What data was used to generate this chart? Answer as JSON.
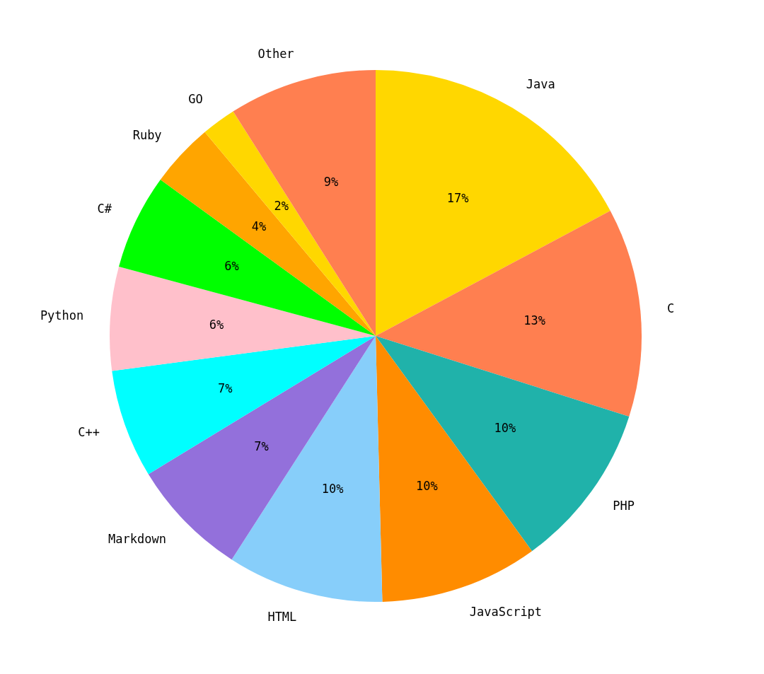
{
  "chart_data": {
    "type": "pie",
    "categories": [
      "Java",
      "C",
      "PHP",
      "JavaScript",
      "HTML",
      "Markdown",
      "C++",
      "Python",
      "C#",
      "Ruby",
      "GO",
      "Other"
    ],
    "values": [
      17.2,
      12.7,
      10.1,
      9.6,
      9.5,
      7.2,
      6.6,
      6.3,
      5.8,
      3.9,
      2.1,
      9.0
    ],
    "value_labels": [
      "17%",
      "13%",
      "10%",
      "10%",
      "10%",
      "7%",
      "7%",
      "6%",
      "6%",
      "4%",
      "2%",
      "9%"
    ],
    "colors": [
      "#ffd700",
      "#ff7f50",
      "#20b2aa",
      "#ff8c00",
      "#87cefa",
      "#9370db",
      "#00ffff",
      "#ffc0cb",
      "#00ff00",
      "#ffa500",
      "#ffd700",
      "#ff7f50"
    ],
    "legend": false
  }
}
